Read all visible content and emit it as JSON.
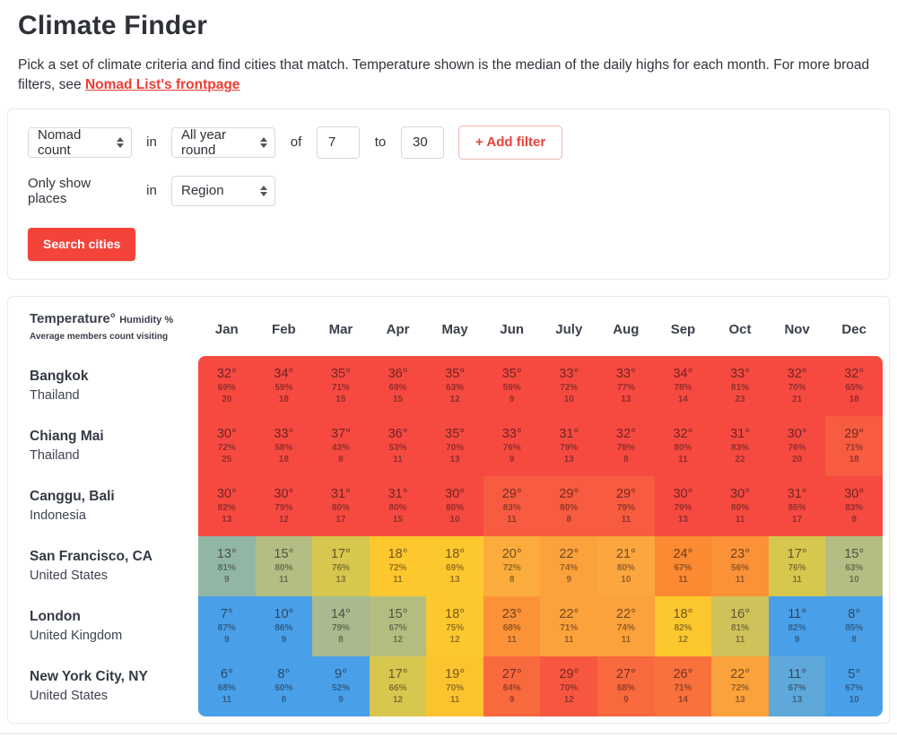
{
  "header": {
    "title": "Climate Finder"
  },
  "intro": {
    "text": "Pick a set of climate criteria and find cities that match. Temperature shown is the median of the daily highs for each month. For more broad filters, see ",
    "link_label": "Nomad List's frontpage"
  },
  "filters": {
    "metric_select": "Nomad count",
    "in_label": "in",
    "period_select": "All year round",
    "of_label": "of",
    "min_value": "7",
    "to_label": "to",
    "max_value": "30",
    "add_filter_label": "+ Add filter",
    "only_show_label": "Only show places",
    "in_label2": "in",
    "region_select": "Region",
    "search_button_label": "Search cities"
  },
  "colors": {
    "accent_red": "#f4433b",
    "link_red": "#ee3c35"
  },
  "table": {
    "legend": {
      "line1": "Temperature°",
      "line2": "Humidity %",
      "line3": "Average members count visiting"
    },
    "months": [
      "Jan",
      "Feb",
      "Mar",
      "Apr",
      "May",
      "Jun",
      "July",
      "Aug",
      "Sep",
      "Oct",
      "Nov",
      "Dec"
    ],
    "rows": [
      {
        "city": "Bangkok",
        "country": "Thailand",
        "cells": [
          {
            "temp": 32,
            "humidity": 69,
            "count": 20,
            "color": "#f64a41"
          },
          {
            "temp": 34,
            "humidity": 59,
            "count": 18,
            "color": "#f64a41"
          },
          {
            "temp": 35,
            "humidity": 71,
            "count": 15,
            "color": "#f64a41"
          },
          {
            "temp": 36,
            "humidity": 69,
            "count": 15,
            "color": "#f64a41"
          },
          {
            "temp": 35,
            "humidity": 63,
            "count": 12,
            "color": "#f64a41"
          },
          {
            "temp": 35,
            "humidity": 59,
            "count": 9,
            "color": "#f64a41"
          },
          {
            "temp": 33,
            "humidity": 72,
            "count": 10,
            "color": "#f64a41"
          },
          {
            "temp": 33,
            "humidity": 77,
            "count": 13,
            "color": "#f64a41"
          },
          {
            "temp": 34,
            "humidity": 78,
            "count": 14,
            "color": "#f64a41"
          },
          {
            "temp": 33,
            "humidity": 81,
            "count": 23,
            "color": "#f64a41"
          },
          {
            "temp": 32,
            "humidity": 70,
            "count": 21,
            "color": "#f64a41"
          },
          {
            "temp": 32,
            "humidity": 65,
            "count": 18,
            "color": "#f64a41"
          }
        ]
      },
      {
        "city": "Chiang Mai",
        "country": "Thailand",
        "cells": [
          {
            "temp": 30,
            "humidity": 72,
            "count": 25,
            "color": "#f64a41"
          },
          {
            "temp": 33,
            "humidity": 58,
            "count": 18,
            "color": "#f64a41"
          },
          {
            "temp": 37,
            "humidity": 43,
            "count": 8,
            "color": "#f64a41"
          },
          {
            "temp": 36,
            "humidity": 53,
            "count": 11,
            "color": "#f64a41"
          },
          {
            "temp": 35,
            "humidity": 70,
            "count": 13,
            "color": "#f64a41"
          },
          {
            "temp": 33,
            "humidity": 76,
            "count": 9,
            "color": "#f64a41"
          },
          {
            "temp": 31,
            "humidity": 79,
            "count": 13,
            "color": "#f64a41"
          },
          {
            "temp": 32,
            "humidity": 79,
            "count": 8,
            "color": "#f64a41"
          },
          {
            "temp": 32,
            "humidity": 80,
            "count": 11,
            "color": "#f64a41"
          },
          {
            "temp": 31,
            "humidity": 83,
            "count": 22,
            "color": "#f64a41"
          },
          {
            "temp": 30,
            "humidity": 76,
            "count": 20,
            "color": "#f64a41"
          },
          {
            "temp": 29,
            "humidity": 71,
            "count": 18,
            "color": "#f75b40"
          }
        ]
      },
      {
        "city": "Canggu, Bali",
        "country": "Indonesia",
        "cells": [
          {
            "temp": 30,
            "humidity": 82,
            "count": 13,
            "color": "#f64a41"
          },
          {
            "temp": 30,
            "humidity": 79,
            "count": 12,
            "color": "#f64a41"
          },
          {
            "temp": 31,
            "humidity": 80,
            "count": 17,
            "color": "#f64a41"
          },
          {
            "temp": 31,
            "humidity": 80,
            "count": 15,
            "color": "#f64a41"
          },
          {
            "temp": 30,
            "humidity": 80,
            "count": 10,
            "color": "#f64a41"
          },
          {
            "temp": 29,
            "humidity": 83,
            "count": 11,
            "color": "#f75b40"
          },
          {
            "temp": 29,
            "humidity": 80,
            "count": 8,
            "color": "#f75b40"
          },
          {
            "temp": 29,
            "humidity": 79,
            "count": 11,
            "color": "#f75b40"
          },
          {
            "temp": 30,
            "humidity": 79,
            "count": 13,
            "color": "#f64a41"
          },
          {
            "temp": 30,
            "humidity": 80,
            "count": 11,
            "color": "#f64a41"
          },
          {
            "temp": 31,
            "humidity": 85,
            "count": 17,
            "color": "#f64a41"
          },
          {
            "temp": 30,
            "humidity": 83,
            "count": 9,
            "color": "#f64a41"
          }
        ]
      },
      {
        "city": "San Francisco, CA",
        "country": "United States",
        "cells": [
          {
            "temp": 13,
            "humidity": 81,
            "count": 9,
            "color": "#92b6a6"
          },
          {
            "temp": 15,
            "humidity": 80,
            "count": 11,
            "color": "#b4bd83"
          },
          {
            "temp": 17,
            "humidity": 76,
            "count": 13,
            "color": "#d7c74e"
          },
          {
            "temp": 18,
            "humidity": 72,
            "count": 11,
            "color": "#fdc72e"
          },
          {
            "temp": 18,
            "humidity": 69,
            "count": 13,
            "color": "#fdc72e"
          },
          {
            "temp": 20,
            "humidity": 72,
            "count": 8,
            "color": "#fbac3d"
          },
          {
            "temp": 22,
            "humidity": 74,
            "count": 9,
            "color": "#fba23c"
          },
          {
            "temp": 21,
            "humidity": 80,
            "count": 10,
            "color": "#fba63e"
          },
          {
            "temp": 24,
            "humidity": 67,
            "count": 11,
            "color": "#fb8a33"
          },
          {
            "temp": 23,
            "humidity": 56,
            "count": 11,
            "color": "#fb9237"
          },
          {
            "temp": 17,
            "humidity": 76,
            "count": 11,
            "color": "#d7c74e"
          },
          {
            "temp": 15,
            "humidity": 63,
            "count": 10,
            "color": "#b4bd83"
          }
        ]
      },
      {
        "city": "London",
        "country": "United Kingdom",
        "cells": [
          {
            "temp": 7,
            "humidity": 87,
            "count": 9,
            "color": "#49a0e9"
          },
          {
            "temp": 10,
            "humidity": 86,
            "count": 9,
            "color": "#49a0e9"
          },
          {
            "temp": 14,
            "humidity": 79,
            "count": 8,
            "color": "#a8ba8e"
          },
          {
            "temp": 15,
            "humidity": 67,
            "count": 12,
            "color": "#b4bd80"
          },
          {
            "temp": 18,
            "humidity": 75,
            "count": 12,
            "color": "#fdc72e"
          },
          {
            "temp": 23,
            "humidity": 68,
            "count": 11,
            "color": "#fb9237"
          },
          {
            "temp": 22,
            "humidity": 71,
            "count": 11,
            "color": "#fba23c"
          },
          {
            "temp": 22,
            "humidity": 74,
            "count": 11,
            "color": "#fba23c"
          },
          {
            "temp": 18,
            "humidity": 82,
            "count": 12,
            "color": "#fdc72e"
          },
          {
            "temp": 16,
            "humidity": 81,
            "count": 11,
            "color": "#cfc25a"
          },
          {
            "temp": 11,
            "humidity": 82,
            "count": 9,
            "color": "#49a0e9"
          },
          {
            "temp": 8,
            "humidity": 85,
            "count": 8,
            "color": "#49a0e9"
          }
        ]
      },
      {
        "city": "New York City, NY",
        "country": "United States",
        "cells": [
          {
            "temp": 6,
            "humidity": 68,
            "count": 11,
            "color": "#49a0e9"
          },
          {
            "temp": 8,
            "humidity": 60,
            "count": 8,
            "color": "#49a0e9"
          },
          {
            "temp": 9,
            "humidity": 52,
            "count": 9,
            "color": "#49a0e9"
          },
          {
            "temp": 17,
            "humidity": 66,
            "count": 12,
            "color": "#d7c74e"
          },
          {
            "temp": 19,
            "humidity": 70,
            "count": 11,
            "color": "#fcc32f"
          },
          {
            "temp": 27,
            "humidity": 64,
            "count": 9,
            "color": "#f9693e"
          },
          {
            "temp": 29,
            "humidity": 70,
            "count": 12,
            "color": "#f7573f"
          },
          {
            "temp": 27,
            "humidity": 68,
            "count": 9,
            "color": "#f9693e"
          },
          {
            "temp": 26,
            "humidity": 71,
            "count": 14,
            "color": "#f9713c"
          },
          {
            "temp": 22,
            "humidity": 72,
            "count": 13,
            "color": "#fba23c"
          },
          {
            "temp": 11,
            "humidity": 67,
            "count": 13,
            "color": "#5ea8da"
          },
          {
            "temp": 5,
            "humidity": 67,
            "count": 10,
            "color": "#49a0e9"
          }
        ]
      }
    ]
  }
}
